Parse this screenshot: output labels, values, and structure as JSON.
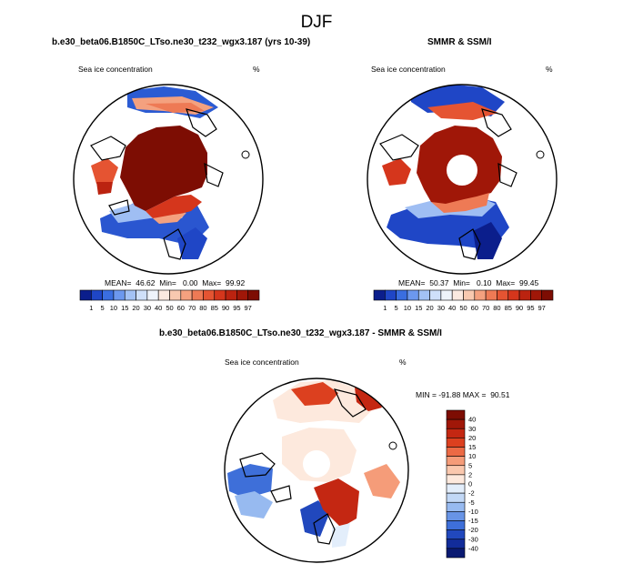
{
  "figure": {
    "title": "DJF"
  },
  "panels": {
    "model": {
      "title": "b.e30_beta06.B1850C_LTso.ne30_t232_wgx3.187 (yrs 10-39)",
      "variable": "Sea ice concentration",
      "units": "%",
      "stats": {
        "mean": "46.62",
        "min": "0.00",
        "max": "99.92"
      },
      "stats_text": "MEAN=  46.62  Min=   0.00  Max=  99.92"
    },
    "obs": {
      "title": "SMMR & SSM/I",
      "variable": "Sea ice concentration",
      "units": "%",
      "stats": {
        "mean": "50.37",
        "min": "0.10",
        "max": "99.45"
      },
      "stats_text": "MEAN=  50.37  Min=   0.10  Max=  99.45"
    },
    "diff": {
      "title": "b.e30_beta06.B1850C_LTso.ne30_t232_wgx3.187 - SMMR & SSM/I",
      "variable": "Sea ice concentration",
      "units": "%",
      "stats": {
        "min": "-91.88",
        "max": "90.51"
      },
      "stats_text": "MIN = -91.88 MAX =  90.51"
    }
  },
  "colorbars": {
    "concentration": {
      "orientation": "horizontal",
      "labels": [
        "1",
        "5",
        "10",
        "15",
        "20",
        "30",
        "40",
        "50",
        "60",
        "70",
        "80",
        "85",
        "90",
        "95",
        "97"
      ],
      "colors": [
        "#0b1e8c",
        "#1f46c6",
        "#3a6ee0",
        "#6c98ee",
        "#a3c2f5",
        "#cfe0fa",
        "#eef3fb",
        "#fbe9e0",
        "#f8c9b0",
        "#f4a17f",
        "#ee7a55",
        "#e55432",
        "#d5361c",
        "#bb2310",
        "#a01708",
        "#7d0d03"
      ]
    },
    "difference": {
      "orientation": "vertical",
      "labels": [
        "40",
        "30",
        "20",
        "15",
        "10",
        "5",
        "2",
        "0",
        "-2",
        "-5",
        "-10",
        "-15",
        "-20",
        "-30",
        "-40"
      ],
      "colors": [
        "#7d0d03",
        "#a01708",
        "#c42712",
        "#dc401f",
        "#ec6a45",
        "#f59c79",
        "#fac8ae",
        "#fde9dd",
        "#e3eefb",
        "#c2d8f6",
        "#97baf0",
        "#6894e6",
        "#3e6fd9",
        "#2148bd",
        "#122c9a",
        "#0a1a72"
      ]
    }
  }
}
